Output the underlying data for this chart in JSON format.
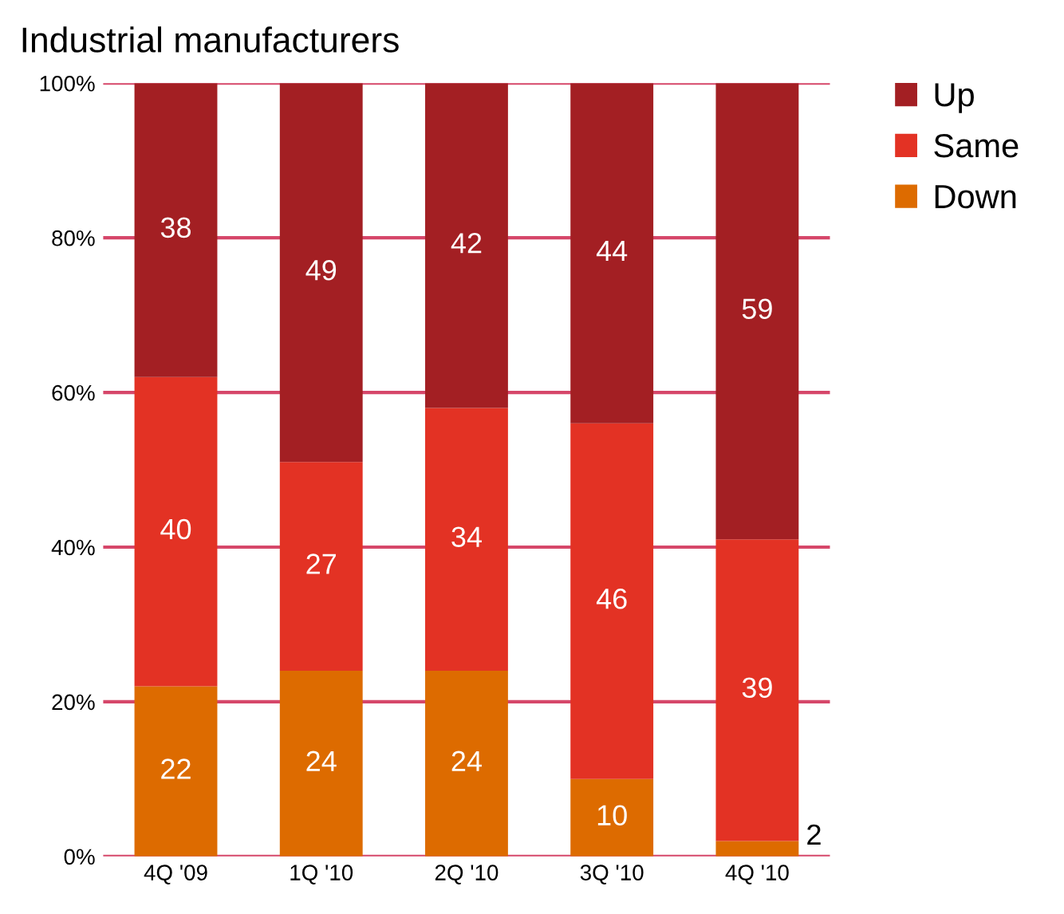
{
  "chart_data": {
    "type": "bar",
    "title": "Industrial manufacturers",
    "stacked": true,
    "categories": [
      "4Q '09",
      "1Q '10",
      "2Q '10",
      "3Q '10",
      "4Q '10"
    ],
    "series": [
      {
        "name": "Down",
        "color": "#dd6b00",
        "values": [
          22,
          24,
          24,
          10,
          2
        ]
      },
      {
        "name": "Same",
        "color": "#e33224",
        "values": [
          40,
          27,
          34,
          46,
          39
        ]
      },
      {
        "name": "Up",
        "color": "#a31f23",
        "values": [
          38,
          49,
          42,
          44,
          59
        ]
      }
    ],
    "ylim": [
      0,
      100
    ],
    "yticks": [
      {
        "value": 0,
        "label": "0%"
      },
      {
        "value": 20,
        "label": "20%"
      },
      {
        "value": 40,
        "label": "40%"
      },
      {
        "value": 60,
        "label": "60%"
      },
      {
        "value": 80,
        "label": "80%"
      },
      {
        "value": 100,
        "label": "100%"
      }
    ],
    "grid": "y",
    "legend": "top right",
    "data_labels": true
  }
}
